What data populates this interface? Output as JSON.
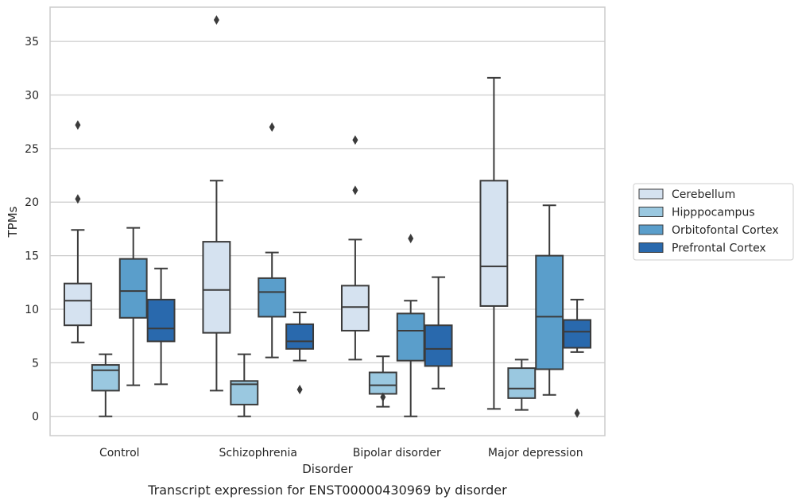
{
  "chart_data": {
    "type": "box",
    "xlabel": "Disorder",
    "ylabel": "TPMs",
    "caption": "Transcript expression for ENST00000430969 by disorder",
    "ylim": [
      -1.8,
      38.2
    ],
    "yticks": [
      0,
      5,
      10,
      15,
      20,
      25,
      30,
      35
    ],
    "grid": "horizontal",
    "legend_position": "right",
    "categories": [
      "Control",
      "Schizophrenia",
      "Bipolar disorder",
      "Major depression"
    ],
    "series": [
      {
        "name": "Cerebellum",
        "color": "#d5e2f0",
        "boxes": [
          {
            "whisker_low": 6.9,
            "q1": 8.5,
            "median": 10.8,
            "q3": 12.4,
            "whisker_high": 17.4,
            "outliers": [
              20.3,
              27.2
            ]
          },
          {
            "whisker_low": 2.4,
            "q1": 7.8,
            "median": 11.8,
            "q3": 16.3,
            "whisker_high": 22.0,
            "outliers": [
              37.0
            ]
          },
          {
            "whisker_low": 5.3,
            "q1": 8.0,
            "median": 10.2,
            "q3": 12.2,
            "whisker_high": 16.5,
            "outliers": [
              21.1,
              25.8
            ]
          },
          {
            "whisker_low": 0.7,
            "q1": 10.3,
            "median": 14.0,
            "q3": 22.0,
            "whisker_high": 31.6,
            "outliers": []
          }
        ]
      },
      {
        "name": "Hipppocampus",
        "color": "#9ac8e0",
        "boxes": [
          {
            "whisker_low": 0.0,
            "q1": 2.4,
            "median": 4.3,
            "q3": 4.8,
            "whisker_high": 5.8,
            "outliers": []
          },
          {
            "whisker_low": 0.0,
            "q1": 1.1,
            "median": 3.0,
            "q3": 3.3,
            "whisker_high": 5.8,
            "outliers": []
          },
          {
            "whisker_low": 0.9,
            "q1": 2.1,
            "median": 2.9,
            "q3": 4.1,
            "whisker_high": 5.6,
            "outliers": [
              1.8
            ]
          },
          {
            "whisker_low": 0.6,
            "q1": 1.7,
            "median": 2.6,
            "q3": 4.5,
            "whisker_high": 5.3,
            "outliers": []
          }
        ]
      },
      {
        "name": "Orbitofontal Cortex",
        "color": "#5a9ecb",
        "boxes": [
          {
            "whisker_low": 2.9,
            "q1": 9.2,
            "median": 11.7,
            "q3": 14.7,
            "whisker_high": 17.6,
            "outliers": []
          },
          {
            "whisker_low": 5.5,
            "q1": 9.3,
            "median": 11.6,
            "q3": 12.9,
            "whisker_high": 15.3,
            "outliers": [
              27.0
            ]
          },
          {
            "whisker_low": 0.0,
            "q1": 5.2,
            "median": 8.0,
            "q3": 9.6,
            "whisker_high": 10.8,
            "outliers": [
              16.6
            ]
          },
          {
            "whisker_low": 2.0,
            "q1": 4.4,
            "median": 9.3,
            "q3": 15.0,
            "whisker_high": 19.7,
            "outliers": []
          }
        ]
      },
      {
        "name": "Prefrontal Cortex",
        "color": "#2969ad",
        "boxes": [
          {
            "whisker_low": 3.0,
            "q1": 7.0,
            "median": 8.2,
            "q3": 10.9,
            "whisker_high": 13.8,
            "outliers": []
          },
          {
            "whisker_low": 5.2,
            "q1": 6.3,
            "median": 7.0,
            "q3": 8.6,
            "whisker_high": 9.7,
            "outliers": [
              2.5
            ]
          },
          {
            "whisker_low": 2.6,
            "q1": 4.7,
            "median": 6.3,
            "q3": 8.5,
            "whisker_high": 13.0,
            "outliers": []
          },
          {
            "whisker_low": 6.0,
            "q1": 6.4,
            "median": 7.9,
            "q3": 9.0,
            "whisker_high": 10.9,
            "outliers": [
              0.3
            ]
          }
        ]
      }
    ]
  }
}
